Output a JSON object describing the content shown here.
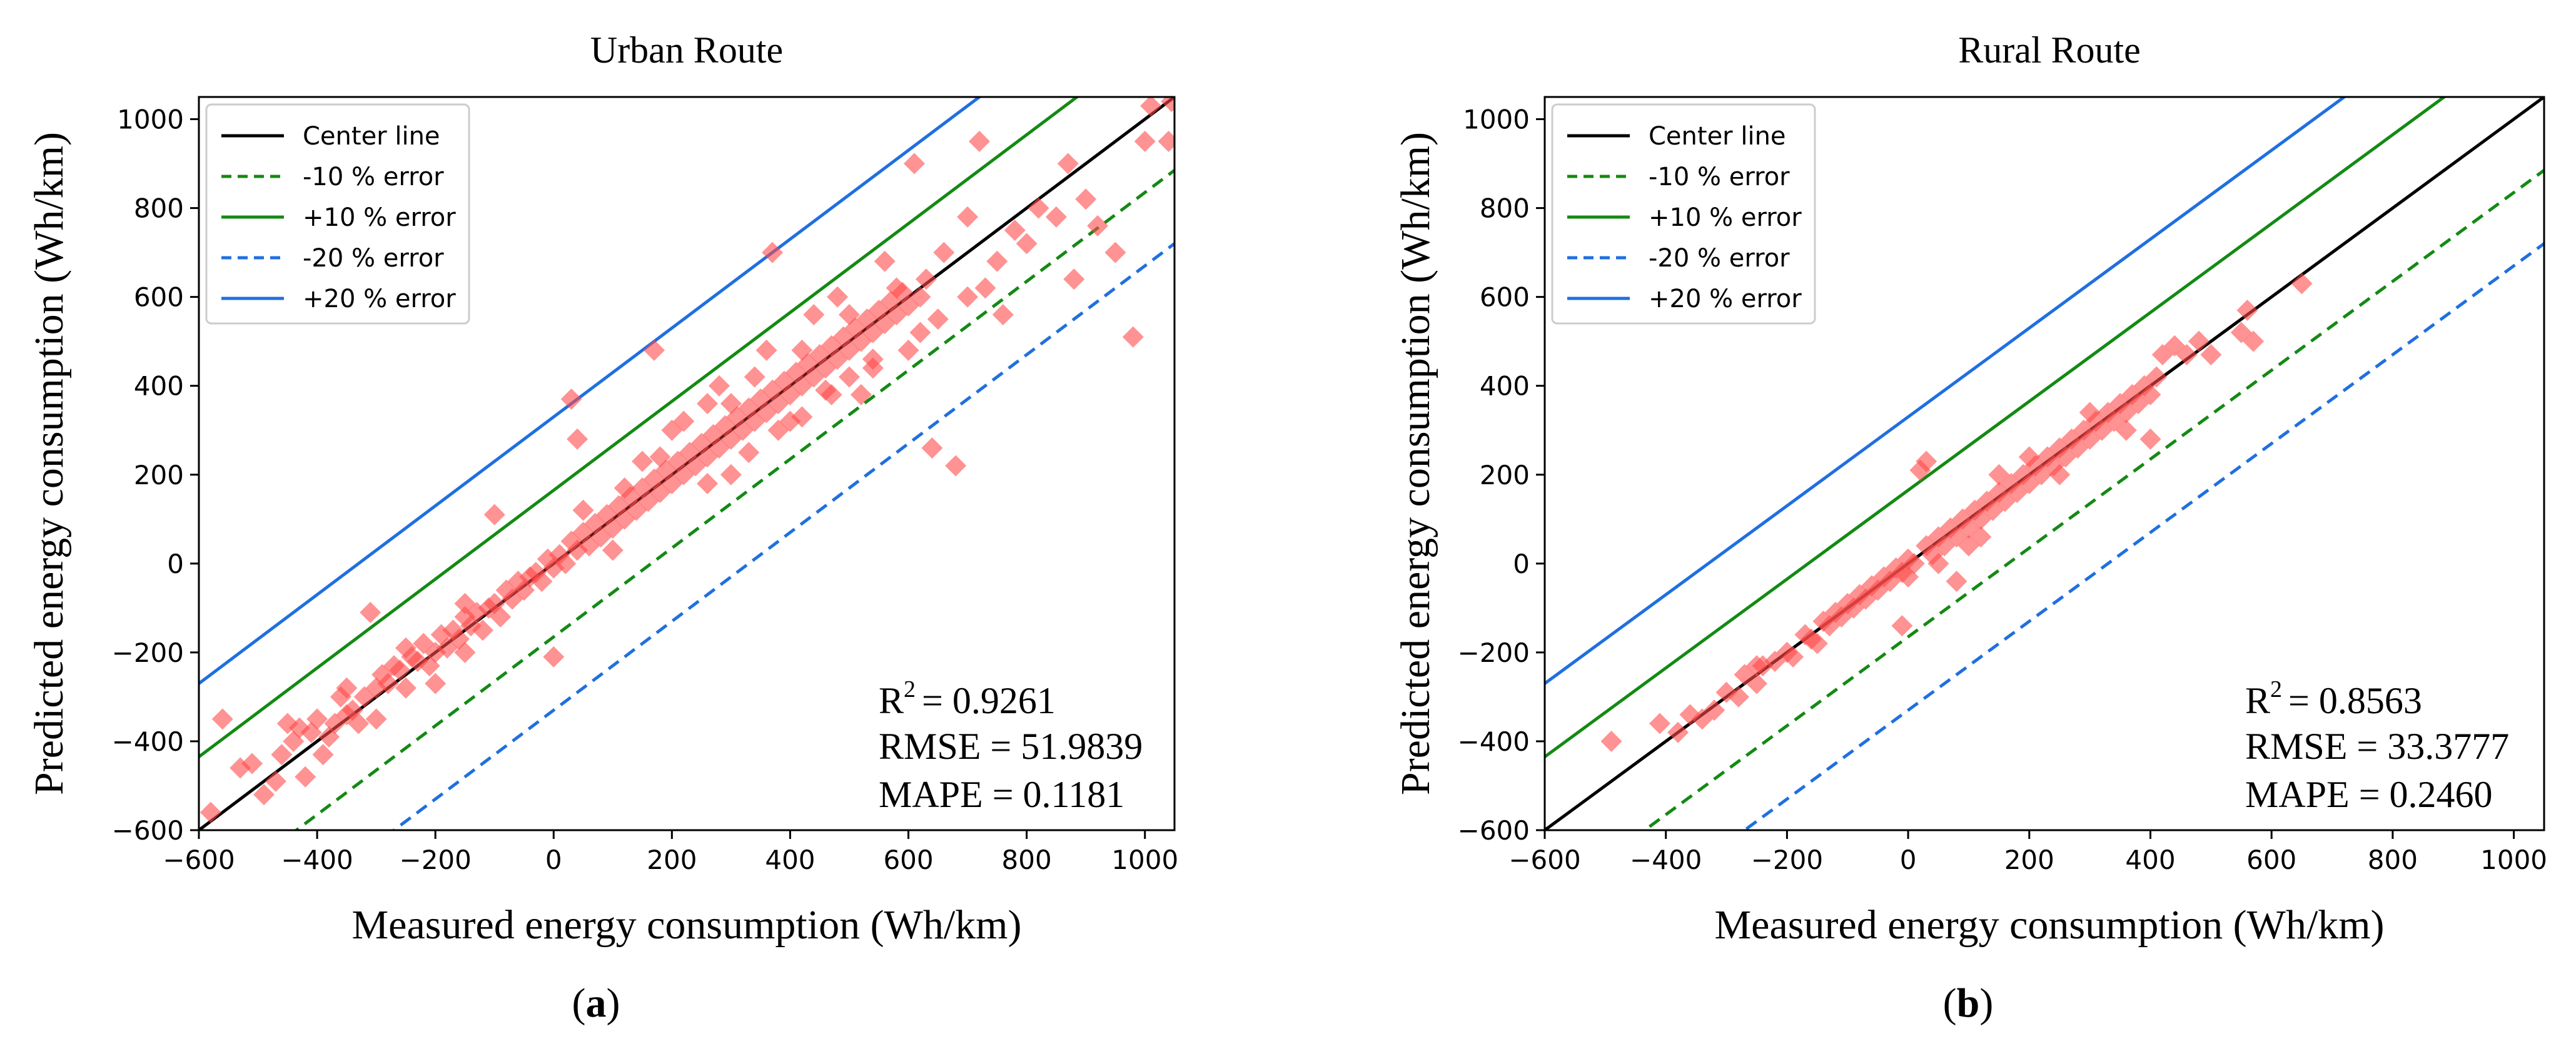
{
  "figure": {
    "panels": [
      {
        "id": "a",
        "label_prefix": "(",
        "label_letter": "a",
        "label_suffix": ")"
      },
      {
        "id": "b",
        "label_prefix": "(",
        "label_letter": "b",
        "label_suffix": ")"
      }
    ]
  },
  "chart_data": [
    {
      "type": "scatter",
      "title": "Urban Route",
      "xlabel": "Measured energy consumption (Wh/km)",
      "ylabel": "Predicted energy consumption (Wh/km)",
      "xlim": [
        -600,
        1050
      ],
      "ylim": [
        -600,
        1050
      ],
      "xticks": [
        -600,
        -400,
        -200,
        0,
        200,
        400,
        600,
        800,
        1000
      ],
      "yticks": [
        -600,
        -400,
        -200,
        0,
        200,
        400,
        600,
        800,
        1000
      ],
      "legend_position": "top-left",
      "legend": [
        {
          "label": "Center line",
          "color": "#000000",
          "style": "solid",
          "offset": 0
        },
        {
          "label": "-10 % error",
          "color": "#138a13",
          "style": "dashed",
          "offset": -165
        },
        {
          "label": "+10 % error",
          "color": "#138a13",
          "style": "solid",
          "offset": 165
        },
        {
          "label": "-20 % error",
          "color": "#1f6fe0",
          "style": "dashed",
          "offset": -330
        },
        {
          "label": "+20 % error",
          "color": "#1f6fe0",
          "style": "solid",
          "offset": 330
        }
      ],
      "stats": {
        "r2_label": "R",
        "r2_sup": "2",
        "r2": "= 0.9261",
        "rmse": "RMSE = 51.9839",
        "mape": "MAPE = 0.1181"
      },
      "marker_color": "#ff4a4a",
      "points": [
        [
          -580,
          -560
        ],
        [
          -560,
          -350
        ],
        [
          -530,
          -460
        ],
        [
          -510,
          -450
        ],
        [
          -490,
          -520
        ],
        [
          -470,
          -490
        ],
        [
          -460,
          -430
        ],
        [
          -450,
          -360
        ],
        [
          -440,
          -400
        ],
        [
          -430,
          -370
        ],
        [
          -420,
          -480
        ],
        [
          -410,
          -380
        ],
        [
          -400,
          -350
        ],
        [
          -390,
          -430
        ],
        [
          -380,
          -390
        ],
        [
          -370,
          -360
        ],
        [
          -360,
          -300
        ],
        [
          -350,
          -340
        ],
        [
          -340,
          -330
        ],
        [
          -330,
          -360
        ],
        [
          -320,
          -300
        ],
        [
          -310,
          -110
        ],
        [
          -300,
          -280
        ],
        [
          -290,
          -250
        ],
        [
          -280,
          -270
        ],
        [
          -270,
          -230
        ],
        [
          -260,
          -240
        ],
        [
          -250,
          -280
        ],
        [
          -240,
          -210
        ],
        [
          -230,
          -220
        ],
        [
          -220,
          -180
        ],
        [
          -210,
          -230
        ],
        [
          -200,
          -200
        ],
        [
          -190,
          -160
        ],
        [
          -180,
          -190
        ],
        [
          -170,
          -150
        ],
        [
          -160,
          -170
        ],
        [
          -150,
          -120
        ],
        [
          -140,
          -140
        ],
        [
          -130,
          -110
        ],
        [
          -120,
          -150
        ],
        [
          -110,
          -100
        ],
        [
          -100,
          -90
        ],
        [
          -100,
          110
        ],
        [
          -90,
          -120
        ],
        [
          -80,
          -60
        ],
        [
          -70,
          -80
        ],
        [
          -60,
          -40
        ],
        [
          -50,
          -60
        ],
        [
          -40,
          -30
        ],
        [
          -30,
          -20
        ],
        [
          -20,
          -40
        ],
        [
          -10,
          10
        ],
        [
          0,
          -10
        ],
        [
          0,
          -210
        ],
        [
          10,
          20
        ],
        [
          20,
          0
        ],
        [
          30,
          370
        ],
        [
          30,
          50
        ],
        [
          40,
          280
        ],
        [
          40,
          30
        ],
        [
          50,
          70
        ],
        [
          60,
          40
        ],
        [
          70,
          90
        ],
        [
          80,
          60
        ],
        [
          90,
          110
        ],
        [
          100,
          80
        ],
        [
          110,
          130
        ],
        [
          120,
          100
        ],
        [
          130,
          150
        ],
        [
          140,
          120
        ],
        [
          150,
          170
        ],
        [
          160,
          140
        ],
        [
          170,
          480
        ],
        [
          170,
          190
        ],
        [
          180,
          160
        ],
        [
          190,
          210
        ],
        [
          200,
          180
        ],
        [
          210,
          230
        ],
        [
          220,
          200
        ],
        [
          230,
          250
        ],
        [
          240,
          220
        ],
        [
          250,
          270
        ],
        [
          260,
          240
        ],
        [
          270,
          290
        ],
        [
          280,
          260
        ],
        [
          290,
          310
        ],
        [
          300,
          280
        ],
        [
          310,
          330
        ],
        [
          320,
          300
        ],
        [
          330,
          350
        ],
        [
          340,
          320
        ],
        [
          350,
          370
        ],
        [
          360,
          340
        ],
        [
          370,
          700
        ],
        [
          370,
          390
        ],
        [
          380,
          360
        ],
        [
          390,
          410
        ],
        [
          400,
          380
        ],
        [
          410,
          430
        ],
        [
          420,
          400
        ],
        [
          430,
          450
        ],
        [
          440,
          420
        ],
        [
          450,
          470
        ],
        [
          460,
          440
        ],
        [
          470,
          490
        ],
        [
          480,
          460
        ],
        [
          490,
          510
        ],
        [
          500,
          480
        ],
        [
          510,
          530
        ],
        [
          520,
          500
        ],
        [
          530,
          550
        ],
        [
          540,
          520
        ],
        [
          550,
          570
        ],
        [
          560,
          540
        ],
        [
          570,
          590
        ],
        [
          580,
          560
        ],
        [
          590,
          610
        ],
        [
          600,
          580
        ],
        [
          610,
          900
        ],
        [
          620,
          600
        ],
        [
          630,
          640
        ],
        [
          640,
          260
        ],
        [
          660,
          700
        ],
        [
          680,
          220
        ],
        [
          700,
          780
        ],
        [
          720,
          950
        ],
        [
          730,
          620
        ],
        [
          750,
          680
        ],
        [
          760,
          560
        ],
        [
          780,
          750
        ],
        [
          800,
          720
        ],
        [
          820,
          800
        ],
        [
          850,
          780
        ],
        [
          870,
          900
        ],
        [
          880,
          640
        ],
        [
          900,
          820
        ],
        [
          920,
          760
        ],
        [
          950,
          700
        ],
        [
          980,
          510
        ],
        [
          1000,
          950
        ],
        [
          1010,
          1030
        ],
        [
          1040,
          950
        ],
        [
          1045,
          1040
        ],
        [
          120,
          170
        ],
        [
          180,
          240
        ],
        [
          220,
          320
        ],
        [
          260,
          360
        ],
        [
          300,
          360
        ],
        [
          340,
          420
        ],
        [
          380,
          300
        ],
        [
          420,
          480
        ],
        [
          460,
          390
        ],
        [
          500,
          560
        ],
        [
          540,
          440
        ],
        [
          580,
          620
        ],
        [
          620,
          520
        ],
        [
          260,
          180
        ],
        [
          330,
          250
        ],
        [
          400,
          320
        ],
        [
          470,
          380
        ],
        [
          540,
          460
        ],
        [
          440,
          560
        ],
        [
          360,
          480
        ],
        [
          280,
          400
        ],
        [
          200,
          300
        ],
        [
          150,
          230
        ],
        [
          480,
          600
        ],
        [
          560,
          680
        ],
        [
          300,
          200
        ],
        [
          420,
          330
        ],
        [
          500,
          420
        ],
        [
          520,
          380
        ],
        [
          600,
          480
        ],
        [
          650,
          550
        ],
        [
          700,
          600
        ],
        [
          -250,
          -190
        ],
        [
          -200,
          -270
        ],
        [
          -150,
          -90
        ],
        [
          -300,
          -350
        ],
        [
          -350,
          -280
        ],
        [
          -150,
          -200
        ],
        [
          50,
          120
        ],
        [
          100,
          30
        ]
      ]
    },
    {
      "type": "scatter",
      "title": "Rural Route",
      "xlabel": "Measured energy consumption (Wh/km)",
      "ylabel": "Predicted energy consumption (Wh/km)",
      "xlim": [
        -600,
        1050
      ],
      "ylim": [
        -600,
        1050
      ],
      "xticks": [
        -600,
        -400,
        -200,
        0,
        200,
        400,
        600,
        800,
        1000
      ],
      "yticks": [
        -600,
        -400,
        -200,
        0,
        200,
        400,
        600,
        800,
        1000
      ],
      "legend_position": "top-left",
      "legend": [
        {
          "label": "Center line",
          "color": "#000000",
          "style": "solid",
          "offset": 0
        },
        {
          "label": "-10 % error",
          "color": "#138a13",
          "style": "dashed",
          "offset": -165
        },
        {
          "label": "+10 % error",
          "color": "#138a13",
          "style": "solid",
          "offset": 165
        },
        {
          "label": "-20 % error",
          "color": "#1f6fe0",
          "style": "dashed",
          "offset": -330
        },
        {
          "label": "+20 % error",
          "color": "#1f6fe0",
          "style": "solid",
          "offset": 330
        }
      ],
      "stats": {
        "r2_label": "R",
        "r2_sup": "2",
        "r2": "= 0.8563",
        "rmse": "RMSE = 33.3777",
        "mape": "MAPE = 0.2460"
      },
      "marker_color": "#ff4a4a",
      "points": [
        [
          -490,
          -400
        ],
        [
          -410,
          -360
        ],
        [
          -380,
          -380
        ],
        [
          -360,
          -340
        ],
        [
          -340,
          -350
        ],
        [
          -320,
          -330
        ],
        [
          -300,
          -290
        ],
        [
          -280,
          -300
        ],
        [
          -270,
          -250
        ],
        [
          -250,
          -270
        ],
        [
          -240,
          -230
        ],
        [
          -220,
          -220
        ],
        [
          -200,
          -200
        ],
        [
          -190,
          -210
        ],
        [
          -170,
          -160
        ],
        [
          -160,
          -170
        ],
        [
          -140,
          -130
        ],
        [
          -130,
          -140
        ],
        [
          -120,
          -110
        ],
        [
          -110,
          -120
        ],
        [
          -100,
          -90
        ],
        [
          -90,
          -100
        ],
        [
          -80,
          -70
        ],
        [
          -70,
          -80
        ],
        [
          -60,
          -50
        ],
        [
          -50,
          -60
        ],
        [
          -40,
          -30
        ],
        [
          -30,
          -40
        ],
        [
          -20,
          -10
        ],
        [
          -10,
          -140
        ],
        [
          -10,
          -20
        ],
        [
          0,
          10
        ],
        [
          10,
          0
        ],
        [
          20,
          210
        ],
        [
          30,
          230
        ],
        [
          30,
          40
        ],
        [
          40,
          20
        ],
        [
          50,
          60
        ],
        [
          60,
          40
        ],
        [
          70,
          80
        ],
        [
          80,
          -40
        ],
        [
          80,
          60
        ],
        [
          90,
          100
        ],
        [
          100,
          80
        ],
        [
          110,
          120
        ],
        [
          120,
          100
        ],
        [
          130,
          140
        ],
        [
          140,
          120
        ],
        [
          150,
          160
        ],
        [
          160,
          140
        ],
        [
          170,
          180
        ],
        [
          180,
          160
        ],
        [
          190,
          200
        ],
        [
          200,
          180
        ],
        [
          210,
          220
        ],
        [
          220,
          200
        ],
        [
          230,
          240
        ],
        [
          240,
          220
        ],
        [
          250,
          260
        ],
        [
          260,
          240
        ],
        [
          270,
          280
        ],
        [
          280,
          260
        ],
        [
          290,
          300
        ],
        [
          300,
          280
        ],
        [
          310,
          320
        ],
        [
          320,
          300
        ],
        [
          330,
          340
        ],
        [
          340,
          320
        ],
        [
          350,
          360
        ],
        [
          360,
          340
        ],
        [
          370,
          380
        ],
        [
          380,
          360
        ],
        [
          390,
          400
        ],
        [
          400,
          380
        ],
        [
          410,
          420
        ],
        [
          400,
          280
        ],
        [
          360,
          300
        ],
        [
          420,
          470
        ],
        [
          440,
          490
        ],
        [
          460,
          470
        ],
        [
          480,
          500
        ],
        [
          500,
          470
        ],
        [
          550,
          520
        ],
        [
          560,
          570
        ],
        [
          570,
          500
        ],
        [
          650,
          630
        ],
        [
          100,
          40
        ],
        [
          150,
          200
        ],
        [
          200,
          240
        ],
        [
          250,
          200
        ],
        [
          300,
          340
        ],
        [
          50,
          0
        ],
        [
          -150,
          -180
        ],
        [
          -250,
          -230
        ],
        [
          0,
          -30
        ],
        [
          120,
          60
        ]
      ]
    }
  ]
}
